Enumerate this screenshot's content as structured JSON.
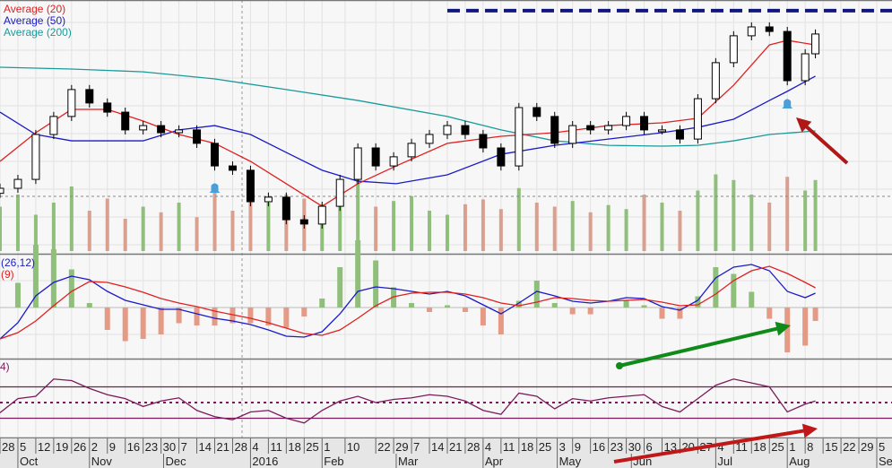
{
  "chart_data": [
    {
      "type": "candlestick",
      "panel": "price",
      "legend": [
        {
          "name": "Average (20)",
          "color": "#e02020"
        },
        {
          "name": "Average (50)",
          "color": "#1a1ac8"
        },
        {
          "name": "Average (200)",
          "color": "#1a9a9a"
        }
      ],
      "dates": [
        "2015-09-28",
        "2015-10-05",
        "2015-10-12",
        "2015-10-19",
        "2015-10-26",
        "2015-11-02",
        "2015-11-09",
        "2015-11-16",
        "2015-11-23",
        "2015-11-30",
        "2015-12-07",
        "2015-12-14",
        "2015-12-21",
        "2015-12-28",
        "2016-01-04",
        "2016-01-11",
        "2016-01-18",
        "2016-01-25",
        "2016-02-01",
        "2016-02-08",
        "2016-02-15",
        "2016-02-22",
        "2016-02-29",
        "2016-03-07",
        "2016-03-14",
        "2016-03-21",
        "2016-03-28",
        "2016-04-04",
        "2016-04-11",
        "2016-04-18",
        "2016-04-25",
        "2016-05-02",
        "2016-05-09",
        "2016-05-16",
        "2016-05-23",
        "2016-05-30",
        "2016-06-06",
        "2016-06-13",
        "2016-06-20",
        "2016-06-27",
        "2016-07-04",
        "2016-07-11",
        "2016-07-18",
        "2016-07-25",
        "2016-08-01",
        "2016-08-08",
        "2016-08-12"
      ],
      "close": [
        25.8,
        29.3,
        47,
        54.1,
        64.7,
        59.4,
        55.8,
        48.8,
        50.5,
        47.7,
        48.8,
        43.5,
        34.6,
        32.9,
        20.5,
        22.3,
        13.4,
        11.7,
        18.7,
        29.3,
        41.7,
        34.6,
        38.2,
        43.5,
        47,
        50.5,
        47,
        41.7,
        34.6,
        57.6,
        54.1,
        43.5,
        50.5,
        48.8,
        50.5,
        54.1,
        48.8,
        48.8,
        45.2,
        61.1,
        75.3,
        85.9,
        89.4,
        87.6,
        68.2,
        78.8,
        86.6
      ],
      "volume": [
        55,
        70,
        45,
        60,
        80,
        50,
        65,
        40,
        55,
        48,
        60,
        42,
        75,
        50,
        85,
        60,
        70,
        65,
        58,
        72,
        90,
        55,
        62,
        68,
        50,
        45,
        58,
        64,
        52,
        78,
        60,
        55,
        62,
        48,
        57,
        52,
        70,
        60,
        50,
        75,
        95,
        88,
        70,
        60,
        92,
        75,
        88
      ],
      "volume_average_line": true,
      "ma20": [
        [
          "2015-09-28",
          36.4
        ],
        [
          "2015-10-12",
          47.7
        ],
        [
          "2015-10-26",
          56.9
        ],
        [
          "2015-11-09",
          56.9
        ],
        [
          "2015-11-23",
          52.3
        ],
        [
          "2015-12-07",
          47
        ],
        [
          "2015-12-21",
          43.5
        ],
        [
          "2016-01-04",
          36.4
        ],
        [
          "2016-01-18",
          27.6
        ],
        [
          "2016-02-01",
          18.7
        ],
        [
          "2016-02-15",
          27.6
        ],
        [
          "2016-03-01",
          34.6
        ],
        [
          "2016-03-21",
          43.5
        ],
        [
          "2016-04-11",
          46.3
        ],
        [
          "2016-05-02",
          47.7
        ],
        [
          "2016-05-23",
          50.5
        ],
        [
          "2016-06-13",
          51.6
        ],
        [
          "2016-06-27",
          53.4
        ],
        [
          "2016-07-11",
          66.4
        ],
        [
          "2016-07-25",
          82.3
        ],
        [
          "2016-08-01",
          84.1
        ],
        [
          "2016-08-12",
          82.3
        ]
      ],
      "ma50": [
        [
          "2015-09-28",
          55.8
        ],
        [
          "2015-10-12",
          47
        ],
        [
          "2015-10-26",
          44.5
        ],
        [
          "2015-11-23",
          44.5
        ],
        [
          "2015-12-07",
          48.8
        ],
        [
          "2015-12-21",
          50.5
        ],
        [
          "2016-01-04",
          47
        ],
        [
          "2016-01-18",
          39.9
        ],
        [
          "2016-02-01",
          32.9
        ],
        [
          "2016-02-15",
          28.6
        ],
        [
          "2016-03-01",
          27.6
        ],
        [
          "2016-03-21",
          31.1
        ],
        [
          "2016-04-11",
          39.2
        ],
        [
          "2016-05-02",
          42.7
        ],
        [
          "2016-05-23",
          45.2
        ],
        [
          "2016-06-13",
          47.7
        ],
        [
          "2016-06-27",
          49.8
        ],
        [
          "2016-07-11",
          53
        ],
        [
          "2016-07-25",
          60.4
        ],
        [
          "2016-08-01",
          64
        ],
        [
          "2016-08-12",
          70
        ]
      ],
      "ma200": [
        [
          "2015-09-28",
          73.5
        ],
        [
          "2015-10-26",
          72.8
        ],
        [
          "2015-11-23",
          71.7
        ],
        [
          "2015-12-21",
          68.9
        ],
        [
          "2016-01-18",
          64.7
        ],
        [
          "2016-02-15",
          60.4
        ],
        [
          "2016-03-21",
          54.1
        ],
        [
          "2016-04-11",
          48.8
        ],
        [
          "2016-05-02",
          44.5
        ],
        [
          "2016-05-23",
          42.7
        ],
        [
          "2016-06-13",
          42.4
        ],
        [
          "2016-06-27",
          42.7
        ],
        [
          "2016-07-11",
          44.5
        ],
        [
          "2016-07-25",
          47
        ],
        [
          "2016-08-12",
          48.4
        ]
      ],
      "resistance_line": {
        "from": "2016-03-21",
        "level": 95.8,
        "color": "#101880",
        "style": "dashed"
      },
      "alerts": [
        {
          "date": "2015-12-21",
          "icon": "bell-icon"
        },
        {
          "date": "2016-08-01",
          "icon": "bell-icon"
        }
      ]
    },
    {
      "type": "line",
      "panel": "macd",
      "legend": [
        {
          "name": "(26,12)",
          "color": "#1a1ac8"
        },
        {
          "name": "(9)",
          "color": "#e02020"
        }
      ],
      "macd": [
        -3.5,
        -1.7,
        1.3,
        2.8,
        3.5,
        3.1,
        1.8,
        0.8,
        0.3,
        -0.2,
        -0.2,
        -0.7,
        -1.2,
        -1.5,
        -1.9,
        -2.5,
        -3.2,
        -3.3,
        -2.7,
        -0.7,
        1.8,
        2.3,
        2.1,
        1.8,
        1.5,
        1.8,
        1.3,
        0.3,
        -0.7,
        0.5,
        1.8,
        1.3,
        0.7,
        0.5,
        0.7,
        1.1,
        1,
        0.1,
        -0.3,
        0.8,
        3.3,
        4.5,
        4.8,
        4.1,
        1.8,
        1.1,
        1.6
      ],
      "signal": [
        -3.5,
        -2.8,
        -1.5,
        0.2,
        1.8,
        2.9,
        2.8,
        2.3,
        1.7,
        1,
        0.5,
        0.1,
        -0.4,
        -0.8,
        -1.2,
        -1.7,
        -2.3,
        -2.9,
        -3.1,
        -2.5,
        -1.2,
        0.2,
        1.2,
        1.6,
        1.7,
        1.7,
        1.5,
        1.1,
        0.5,
        0.2,
        0.6,
        1.1,
        1,
        0.8,
        0.7,
        0.8,
        0.9,
        0.6,
        0.2,
        0.3,
        1.5,
        3,
        4.1,
        4.6,
        3.8,
        2.8,
        2.2
      ],
      "histogram_colors": {
        "up": "#8fbf7a",
        "down": "#e59a85"
      }
    },
    {
      "type": "line",
      "panel": "rsi",
      "legend": [
        {
          "name": "4)",
          "color": "#7a1a5a"
        }
      ],
      "rsi": [
        37,
        55,
        58,
        80,
        78,
        68,
        60,
        55,
        45,
        52,
        56,
        40,
        32,
        28,
        38,
        40,
        30,
        24,
        40,
        52,
        58,
        50,
        54,
        56,
        60,
        58,
        52,
        40,
        35,
        62,
        58,
        42,
        55,
        52,
        56,
        58,
        60,
        45,
        38,
        55,
        72,
        80,
        75,
        70,
        38,
        48,
        52
      ],
      "levels": [
        70,
        50,
        30
      ],
      "ylim": [
        0,
        100
      ]
    }
  ],
  "x_axis": {
    "day_ticks": [
      {
        "label": "28",
        "date": "2015-09-28"
      },
      {
        "label": "5",
        "date": "2015-10-05"
      },
      {
        "label": "12",
        "date": "2015-10-12"
      },
      {
        "label": "19",
        "date": "2015-10-19"
      },
      {
        "label": "26",
        "date": "2015-10-26"
      },
      {
        "label": "2",
        "date": "2015-11-02"
      },
      {
        "label": "9",
        "date": "2015-11-09"
      },
      {
        "label": "16",
        "date": "2015-11-16"
      },
      {
        "label": "23",
        "date": "2015-11-23"
      },
      {
        "label": "30",
        "date": "2015-11-30"
      },
      {
        "label": "7",
        "date": "2015-12-07"
      },
      {
        "label": "14",
        "date": "2015-12-14"
      },
      {
        "label": "21",
        "date": "2015-12-21"
      },
      {
        "label": "28",
        "date": "2015-12-28"
      },
      {
        "label": "4",
        "date": "2016-01-04"
      },
      {
        "label": "11",
        "date": "2016-01-11"
      },
      {
        "label": "18",
        "date": "2016-01-18"
      },
      {
        "label": "25",
        "date": "2016-01-25"
      },
      {
        "label": "1",
        "date": "2016-02-01"
      },
      {
        "label": "10",
        "date": "2016-02-10"
      },
      {
        "label": "22",
        "date": "2016-02-22"
      },
      {
        "label": "29",
        "date": "2016-02-29"
      },
      {
        "label": "7",
        "date": "2016-03-07"
      },
      {
        "label": "14",
        "date": "2016-03-14"
      },
      {
        "label": "21",
        "date": "2016-03-21"
      },
      {
        "label": "28",
        "date": "2016-03-28"
      },
      {
        "label": "4",
        "date": "2016-04-04"
      },
      {
        "label": "11",
        "date": "2016-04-11"
      },
      {
        "label": "18",
        "date": "2016-04-18"
      },
      {
        "label": "25",
        "date": "2016-04-25"
      },
      {
        "label": "3",
        "date": "2016-05-03"
      },
      {
        "label": "9",
        "date": "2016-05-09"
      },
      {
        "label": "16",
        "date": "2016-05-16"
      },
      {
        "label": "23",
        "date": "2016-05-23"
      },
      {
        "label": "30",
        "date": "2016-05-30"
      },
      {
        "label": "6",
        "date": "2016-06-06"
      },
      {
        "label": "13",
        "date": "2016-06-13"
      },
      {
        "label": "20",
        "date": "2016-06-20"
      },
      {
        "label": "27",
        "date": "2016-06-27"
      },
      {
        "label": "4",
        "date": "2016-07-04"
      },
      {
        "label": "11",
        "date": "2016-07-11"
      },
      {
        "label": "18",
        "date": "2016-07-18"
      },
      {
        "label": "25",
        "date": "2016-07-25"
      },
      {
        "label": "1",
        "date": "2016-08-01"
      },
      {
        "label": "8",
        "date": "2016-08-08"
      },
      {
        "label": "15",
        "date": "2016-08-15"
      },
      {
        "label": "22",
        "date": "2016-08-22"
      },
      {
        "label": "29",
        "date": "2016-08-29"
      },
      {
        "label": "5",
        "date": "2016-09-05"
      }
    ],
    "month_ticks": [
      {
        "label": "Oct",
        "date": "2015-10-05"
      },
      {
        "label": "Nov",
        "date": "2015-11-02"
      },
      {
        "label": "Dec",
        "date": "2015-12-01"
      },
      {
        "label": "2016",
        "date": "2016-01-04"
      },
      {
        "label": "Feb",
        "date": "2016-02-01"
      },
      {
        "label": "Mar",
        "date": "2016-03-01"
      },
      {
        "label": "Apr",
        "date": "2016-04-04"
      },
      {
        "label": "May",
        "date": "2016-05-03"
      },
      {
        "label": "Jun",
        "date": "2016-06-01"
      },
      {
        "label": "Jul",
        "date": "2016-07-04"
      },
      {
        "label": "Aug",
        "date": "2016-08-01"
      },
      {
        "label": "Sep",
        "date": "2016-09-05"
      }
    ]
  },
  "annotations": [
    {
      "type": "arrow",
      "color": "#b01818",
      "panel": "price",
      "points_to": "2016-08-01 alert"
    },
    {
      "type": "arrow",
      "color": "#108a18",
      "panel": "macd",
      "direction": "rising"
    },
    {
      "type": "arrow",
      "color": "#c01818",
      "panel": "rsi",
      "direction": "rising"
    }
  ],
  "colors": {
    "up_candle": "#ffffff",
    "down_candle": "#000000",
    "volume_up": "#8fbf7a",
    "volume_down": "#d9a090",
    "grid": "#e2e2e2",
    "background": "#f7f7f7",
    "axis_bg": "#e6e6e6"
  }
}
